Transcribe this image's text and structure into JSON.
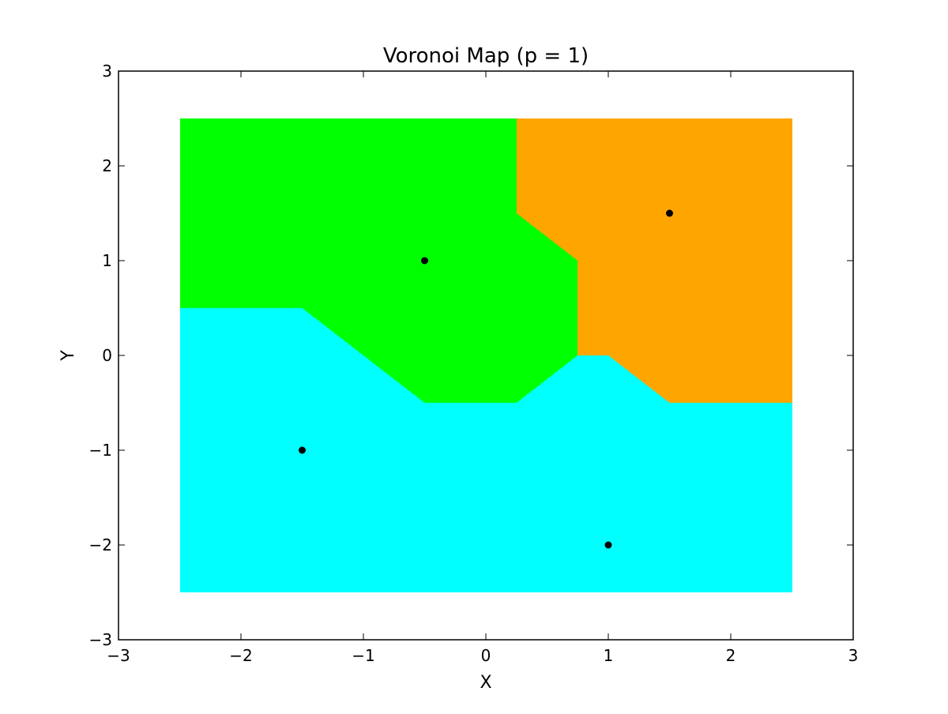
{
  "chart_data": {
    "type": "heatmap",
    "title": "Voronoi Map (p = 1)",
    "xlabel": "X",
    "ylabel": "Y",
    "xlim": [
      -3,
      3
    ],
    "ylim": [
      -3,
      3
    ],
    "xticks": [
      -3,
      -2,
      -1,
      0,
      1,
      2,
      3
    ],
    "yticks": [
      -3,
      -2,
      -1,
      0,
      1,
      2,
      3
    ],
    "xtick_labels": [
      "−3",
      "−2",
      "−1",
      "0",
      "1",
      "2",
      "3"
    ],
    "ytick_labels": [
      "−3",
      "−2",
      "−1",
      "0",
      "1",
      "2",
      "3"
    ],
    "distance_metric_p": 1,
    "grid": false,
    "legend": "none",
    "grid_extent": {
      "x": [
        -2.5,
        2.5
      ],
      "y": [
        -2.5,
        2.5
      ]
    },
    "sites": [
      {
        "x": -0.5,
        "y": 1.0,
        "color": "#00ff00"
      },
      {
        "x": 1.5,
        "y": 1.5,
        "color": "#ffa500"
      },
      {
        "x": -1.5,
        "y": -1.0,
        "color": "#00ffff"
      },
      {
        "x": 1.0,
        "y": -2.0,
        "color": "#00ffff"
      }
    ],
    "point_color": "#000000"
  }
}
